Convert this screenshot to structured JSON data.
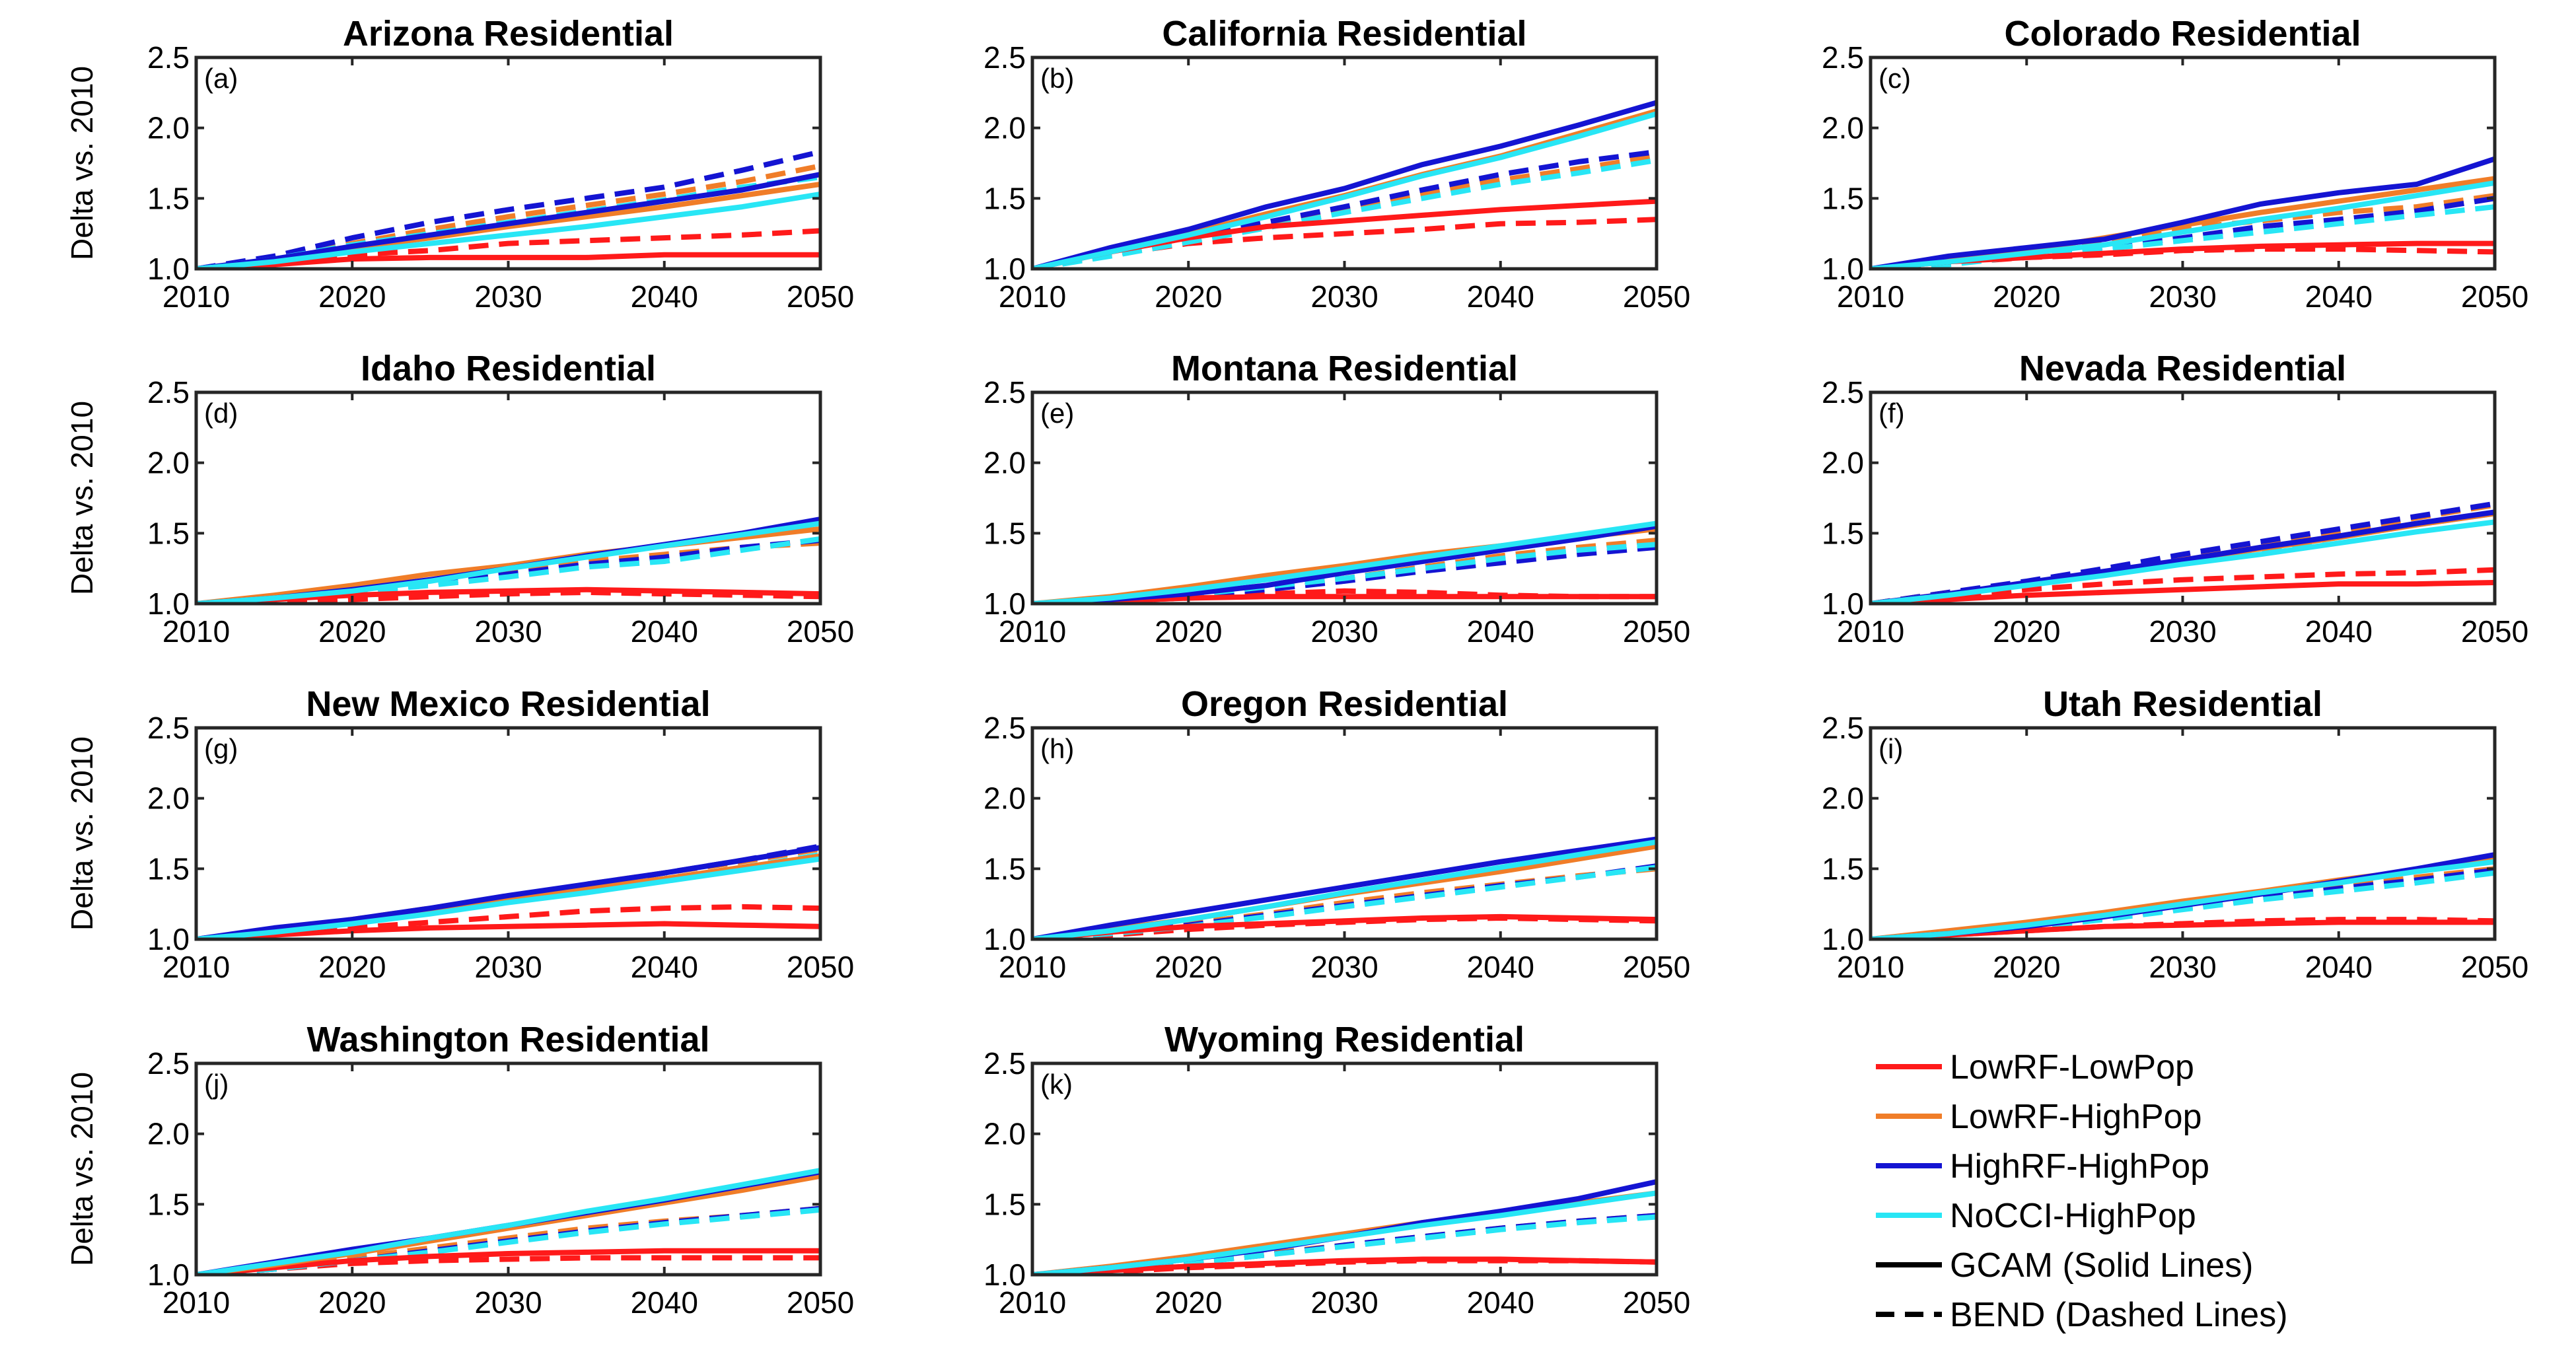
{
  "figure": {
    "ylabel": "Delta vs. 2010"
  },
  "chart_data": {
    "type": "line",
    "x_ticks": [
      2010,
      2020,
      2030,
      2040,
      2050
    ],
    "y_ticks": [
      "1.0",
      "1.5",
      "2.0",
      "2.5"
    ],
    "xlim": [
      2010,
      2050
    ],
    "ylim": [
      1.0,
      2.5
    ],
    "x": [
      2010,
      2015,
      2020,
      2025,
      2030,
      2035,
      2040,
      2045,
      2050
    ],
    "legend": [
      {
        "label": "LowRF-LowPop",
        "color": "#ff1a1a",
        "style": "solid"
      },
      {
        "label": "LowRF-HighPop",
        "color": "#f07d28",
        "style": "solid"
      },
      {
        "label": "HighRF-HighPop",
        "color": "#1414d2",
        "style": "solid"
      },
      {
        "label": "NoCCI-HighPop",
        "color": "#28e6f5",
        "style": "solid"
      },
      {
        "label": "GCAM (Solid Lines)",
        "color": "#000000",
        "style": "solid"
      },
      {
        "label": "BEND (Dashed Lines)",
        "color": "#000000",
        "style": "dashed"
      }
    ],
    "series_meta": [
      {
        "name": "LowRF-LowPop",
        "color": "#ff1a1a"
      },
      {
        "name": "LowRF-HighPop",
        "color": "#f07d28"
      },
      {
        "name": "HighRF-HighPop",
        "color": "#1414d2"
      },
      {
        "name": "NoCCI-HighPop",
        "color": "#28e6f5"
      }
    ],
    "panels": [
      {
        "label": "(a)",
        "title": "Arizona Residential",
        "gcam": [
          [
            1.0,
            1.03,
            1.07,
            1.08,
            1.08,
            1.08,
            1.1,
            1.1,
            1.1
          ],
          [
            1.0,
            1.06,
            1.15,
            1.22,
            1.3,
            1.37,
            1.44,
            1.52,
            1.6
          ],
          [
            1.0,
            1.07,
            1.16,
            1.24,
            1.32,
            1.4,
            1.48,
            1.56,
            1.67
          ],
          [
            1.0,
            1.05,
            1.12,
            1.18,
            1.24,
            1.3,
            1.37,
            1.44,
            1.53
          ]
        ],
        "bend": [
          [
            1.0,
            1.05,
            1.1,
            1.13,
            1.18,
            1.2,
            1.22,
            1.24,
            1.27
          ],
          [
            1.0,
            1.07,
            1.18,
            1.28,
            1.37,
            1.45,
            1.53,
            1.62,
            1.73
          ],
          [
            1.0,
            1.09,
            1.22,
            1.33,
            1.42,
            1.5,
            1.58,
            1.7,
            1.83
          ],
          [
            1.0,
            1.07,
            1.17,
            1.25,
            1.33,
            1.41,
            1.49,
            1.58,
            1.65
          ]
        ]
      },
      {
        "label": "(b)",
        "title": "California Residential",
        "gcam": [
          [
            1.0,
            1.12,
            1.22,
            1.3,
            1.34,
            1.38,
            1.42,
            1.45,
            1.48
          ],
          [
            1.0,
            1.13,
            1.25,
            1.39,
            1.52,
            1.67,
            1.8,
            1.96,
            2.12
          ],
          [
            1.0,
            1.15,
            1.28,
            1.44,
            1.57,
            1.74,
            1.87,
            2.02,
            2.18
          ],
          [
            1.0,
            1.12,
            1.24,
            1.37,
            1.51,
            1.66,
            1.79,
            1.94,
            2.1
          ]
        ],
        "bend": [
          [
            1.0,
            1.1,
            1.18,
            1.22,
            1.25,
            1.28,
            1.32,
            1.33,
            1.35
          ],
          [
            1.0,
            1.1,
            1.2,
            1.31,
            1.42,
            1.53,
            1.63,
            1.71,
            1.8
          ],
          [
            1.0,
            1.11,
            1.22,
            1.33,
            1.44,
            1.56,
            1.67,
            1.76,
            1.83
          ],
          [
            1.0,
            1.09,
            1.19,
            1.29,
            1.4,
            1.5,
            1.6,
            1.68,
            1.77
          ]
        ]
      },
      {
        "label": "(c)",
        "title": "Colorado Residential",
        "gcam": [
          [
            1.0,
            1.05,
            1.08,
            1.11,
            1.14,
            1.16,
            1.17,
            1.18,
            1.18
          ],
          [
            1.0,
            1.07,
            1.13,
            1.22,
            1.31,
            1.4,
            1.48,
            1.56,
            1.64
          ],
          [
            1.0,
            1.09,
            1.15,
            1.21,
            1.33,
            1.46,
            1.54,
            1.6,
            1.78
          ],
          [
            1.0,
            1.05,
            1.11,
            1.17,
            1.26,
            1.35,
            1.43,
            1.52,
            1.61
          ]
        ],
        "bend": [
          [
            1.0,
            1.04,
            1.08,
            1.1,
            1.13,
            1.14,
            1.14,
            1.13,
            1.12
          ],
          [
            1.0,
            1.05,
            1.12,
            1.2,
            1.29,
            1.34,
            1.4,
            1.44,
            1.52
          ],
          [
            1.0,
            1.05,
            1.1,
            1.15,
            1.22,
            1.3,
            1.35,
            1.41,
            1.5
          ],
          [
            1.0,
            1.03,
            1.09,
            1.14,
            1.2,
            1.26,
            1.32,
            1.38,
            1.44
          ]
        ]
      },
      {
        "label": "(d)",
        "title": "Idaho Residential",
        "gcam": [
          [
            1.0,
            1.03,
            1.06,
            1.08,
            1.09,
            1.1,
            1.09,
            1.08,
            1.07
          ],
          [
            1.0,
            1.06,
            1.13,
            1.21,
            1.27,
            1.35,
            1.41,
            1.47,
            1.53
          ],
          [
            1.0,
            1.04,
            1.1,
            1.17,
            1.25,
            1.34,
            1.42,
            1.5,
            1.6
          ],
          [
            1.0,
            1.04,
            1.09,
            1.16,
            1.25,
            1.33,
            1.41,
            1.49,
            1.57
          ]
        ],
        "bend": [
          [
            1.0,
            1.01,
            1.03,
            1.05,
            1.07,
            1.08,
            1.07,
            1.06,
            1.05
          ],
          [
            1.0,
            1.04,
            1.1,
            1.15,
            1.23,
            1.3,
            1.35,
            1.4,
            1.43
          ],
          [
            1.0,
            1.03,
            1.09,
            1.14,
            1.21,
            1.28,
            1.33,
            1.4,
            1.45
          ],
          [
            1.0,
            1.03,
            1.08,
            1.13,
            1.19,
            1.26,
            1.3,
            1.38,
            1.46
          ]
        ]
      },
      {
        "label": "(e)",
        "title": "Montana Residential",
        "gcam": [
          [
            1.0,
            1.02,
            1.04,
            1.05,
            1.05,
            1.05,
            1.05,
            1.05,
            1.05
          ],
          [
            1.0,
            1.05,
            1.12,
            1.2,
            1.27,
            1.35,
            1.41,
            1.47,
            1.53
          ],
          [
            1.0,
            1.03,
            1.07,
            1.13,
            1.22,
            1.3,
            1.38,
            1.46,
            1.55
          ],
          [
            1.0,
            1.04,
            1.1,
            1.17,
            1.25,
            1.33,
            1.41,
            1.49,
            1.57
          ]
        ],
        "bend": [
          [
            1.0,
            1.02,
            1.04,
            1.07,
            1.09,
            1.08,
            1.06,
            1.05,
            1.05
          ],
          [
            1.0,
            1.03,
            1.07,
            1.12,
            1.18,
            1.26,
            1.34,
            1.4,
            1.45
          ],
          [
            1.0,
            1.02,
            1.06,
            1.1,
            1.16,
            1.23,
            1.29,
            1.35,
            1.4
          ],
          [
            1.0,
            1.03,
            1.06,
            1.12,
            1.18,
            1.25,
            1.32,
            1.38,
            1.42
          ]
        ]
      },
      {
        "label": "(f)",
        "title": "Nevada Residential",
        "gcam": [
          [
            1.0,
            1.03,
            1.06,
            1.08,
            1.1,
            1.12,
            1.14,
            1.14,
            1.15
          ],
          [
            1.0,
            1.07,
            1.14,
            1.22,
            1.31,
            1.39,
            1.47,
            1.56,
            1.64
          ],
          [
            1.0,
            1.07,
            1.15,
            1.23,
            1.31,
            1.4,
            1.48,
            1.57,
            1.65
          ],
          [
            1.0,
            1.06,
            1.13,
            1.2,
            1.28,
            1.35,
            1.43,
            1.51,
            1.58
          ]
        ],
        "bend": [
          [
            1.0,
            1.05,
            1.1,
            1.14,
            1.17,
            1.19,
            1.21,
            1.22,
            1.24
          ],
          [
            1.0,
            1.08,
            1.15,
            1.24,
            1.33,
            1.42,
            1.51,
            1.61,
            1.7
          ],
          [
            1.0,
            1.08,
            1.16,
            1.25,
            1.35,
            1.44,
            1.53,
            1.62,
            1.71
          ],
          [
            1.0,
            1.07,
            1.14,
            1.22,
            1.3,
            1.38,
            1.47,
            1.56,
            1.64
          ]
        ]
      },
      {
        "label": "(g)",
        "title": "New Mexico Residential",
        "gcam": [
          [
            1.0,
            1.03,
            1.06,
            1.08,
            1.09,
            1.1,
            1.11,
            1.1,
            1.09
          ],
          [
            1.0,
            1.06,
            1.12,
            1.2,
            1.28,
            1.36,
            1.43,
            1.51,
            1.59
          ],
          [
            1.0,
            1.08,
            1.14,
            1.22,
            1.31,
            1.39,
            1.47,
            1.56,
            1.65
          ],
          [
            1.0,
            1.05,
            1.11,
            1.18,
            1.26,
            1.33,
            1.41,
            1.49,
            1.57
          ]
        ],
        "bend": [
          [
            1.0,
            1.04,
            1.08,
            1.12,
            1.16,
            1.2,
            1.22,
            1.23,
            1.22
          ],
          [
            1.0,
            1.07,
            1.14,
            1.22,
            1.3,
            1.39,
            1.47,
            1.55,
            1.64
          ],
          [
            1.0,
            1.07,
            1.13,
            1.21,
            1.3,
            1.38,
            1.47,
            1.56,
            1.66
          ],
          [
            1.0,
            1.05,
            1.11,
            1.19,
            1.27,
            1.35,
            1.43,
            1.51,
            1.6
          ]
        ]
      },
      {
        "label": "(h)",
        "title": "Oregon Residential",
        "gcam": [
          [
            1.0,
            1.05,
            1.09,
            1.11,
            1.13,
            1.15,
            1.16,
            1.15,
            1.14
          ],
          [
            1.0,
            1.07,
            1.14,
            1.23,
            1.32,
            1.4,
            1.48,
            1.57,
            1.66
          ],
          [
            1.0,
            1.1,
            1.19,
            1.28,
            1.37,
            1.46,
            1.55,
            1.63,
            1.71
          ],
          [
            1.0,
            1.06,
            1.14,
            1.23,
            1.33,
            1.42,
            1.51,
            1.6,
            1.69
          ]
        ],
        "bend": [
          [
            1.0,
            1.03,
            1.07,
            1.1,
            1.12,
            1.14,
            1.15,
            1.14,
            1.13
          ],
          [
            1.0,
            1.05,
            1.11,
            1.18,
            1.26,
            1.33,
            1.39,
            1.45,
            1.5
          ],
          [
            1.0,
            1.04,
            1.1,
            1.17,
            1.24,
            1.31,
            1.38,
            1.44,
            1.52
          ],
          [
            1.0,
            1.04,
            1.09,
            1.16,
            1.23,
            1.3,
            1.37,
            1.44,
            1.51
          ]
        ]
      },
      {
        "label": "(i)",
        "title": "Utah Residential",
        "gcam": [
          [
            1.0,
            1.03,
            1.06,
            1.09,
            1.1,
            1.11,
            1.12,
            1.12,
            1.12
          ],
          [
            1.0,
            1.06,
            1.12,
            1.19,
            1.27,
            1.34,
            1.42,
            1.49,
            1.57
          ],
          [
            1.0,
            1.04,
            1.09,
            1.16,
            1.24,
            1.32,
            1.41,
            1.5,
            1.6
          ],
          [
            1.0,
            1.04,
            1.1,
            1.17,
            1.25,
            1.33,
            1.4,
            1.48,
            1.55
          ]
        ],
        "bend": [
          [
            1.0,
            1.03,
            1.06,
            1.09,
            1.11,
            1.13,
            1.14,
            1.14,
            1.13
          ],
          [
            1.0,
            1.04,
            1.1,
            1.16,
            1.23,
            1.3,
            1.37,
            1.44,
            1.5
          ],
          [
            1.0,
            1.03,
            1.08,
            1.15,
            1.22,
            1.29,
            1.36,
            1.42,
            1.49
          ],
          [
            1.0,
            1.03,
            1.08,
            1.14,
            1.21,
            1.28,
            1.34,
            1.4,
            1.47
          ]
        ]
      },
      {
        "label": "(j)",
        "title": "Washington Residential",
        "gcam": [
          [
            1.0,
            1.05,
            1.1,
            1.13,
            1.15,
            1.16,
            1.17,
            1.17,
            1.17
          ],
          [
            1.0,
            1.07,
            1.15,
            1.24,
            1.33,
            1.42,
            1.51,
            1.6,
            1.7
          ],
          [
            1.0,
            1.09,
            1.18,
            1.26,
            1.35,
            1.44,
            1.53,
            1.63,
            1.73
          ],
          [
            1.0,
            1.08,
            1.16,
            1.26,
            1.35,
            1.45,
            1.54,
            1.64,
            1.74
          ]
        ],
        "bend": [
          [
            1.0,
            1.04,
            1.08,
            1.1,
            1.11,
            1.12,
            1.12,
            1.12,
            1.12
          ],
          [
            1.0,
            1.05,
            1.12,
            1.19,
            1.26,
            1.33,
            1.38,
            1.42,
            1.47
          ],
          [
            1.0,
            1.04,
            1.1,
            1.17,
            1.24,
            1.31,
            1.37,
            1.42,
            1.47
          ],
          [
            1.0,
            1.04,
            1.1,
            1.16,
            1.23,
            1.3,
            1.36,
            1.41,
            1.46
          ]
        ]
      },
      {
        "label": "(k)",
        "title": "Wyoming Residential",
        "gcam": [
          [
            1.0,
            1.03,
            1.06,
            1.08,
            1.1,
            1.11,
            1.11,
            1.1,
            1.09
          ],
          [
            1.0,
            1.06,
            1.13,
            1.21,
            1.29,
            1.37,
            1.44,
            1.51,
            1.58
          ],
          [
            1.0,
            1.05,
            1.11,
            1.18,
            1.27,
            1.37,
            1.45,
            1.54,
            1.66
          ],
          [
            1.0,
            1.05,
            1.11,
            1.19,
            1.27,
            1.35,
            1.42,
            1.5,
            1.58
          ]
        ],
        "bend": [
          [
            1.0,
            1.02,
            1.05,
            1.07,
            1.09,
            1.1,
            1.1,
            1.1,
            1.09
          ],
          [
            1.0,
            1.04,
            1.09,
            1.15,
            1.21,
            1.27,
            1.33,
            1.38,
            1.42
          ],
          [
            1.0,
            1.03,
            1.08,
            1.14,
            1.21,
            1.27,
            1.33,
            1.38,
            1.42
          ],
          [
            1.0,
            1.03,
            1.08,
            1.14,
            1.2,
            1.26,
            1.32,
            1.37,
            1.41
          ]
        ]
      }
    ]
  }
}
